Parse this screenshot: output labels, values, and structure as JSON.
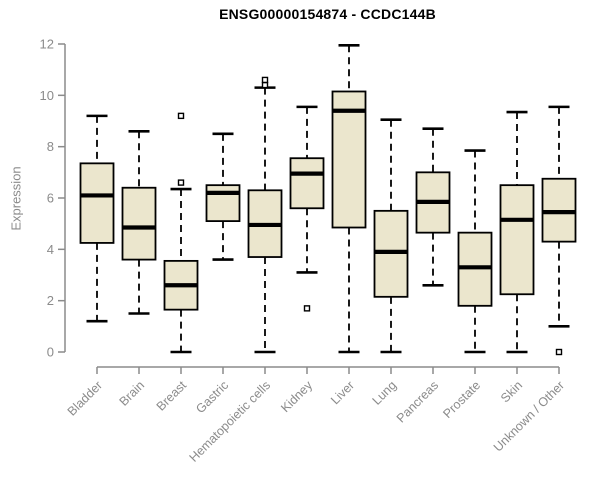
{
  "chart": {
    "title": "ENSG00000154874 - CCDC144B",
    "ylabel": "Expression"
  },
  "chart_data": {
    "type": "boxplot",
    "title": "ENSG00000154874 - CCDC144B",
    "xlabel": "",
    "ylabel": "Expression",
    "ylim": [
      0,
      12
    ],
    "yticks": [
      0,
      2,
      4,
      6,
      8,
      10,
      12
    ],
    "grid": false,
    "legend": "none",
    "categories": [
      "Bladder",
      "Brain",
      "Breast",
      "Gastric",
      "Hematopoietic cells",
      "Kidney",
      "Liver",
      "Lung",
      "Pancreas",
      "Prostate",
      "Skin",
      "Unknown / Other"
    ],
    "series": [
      {
        "name": "Bladder",
        "whisker_low": 1.2,
        "q1": 4.25,
        "median": 6.1,
        "q3": 7.35,
        "whisker_high": 9.2,
        "outliers": []
      },
      {
        "name": "Brain",
        "whisker_low": 1.5,
        "q1": 3.6,
        "median": 4.85,
        "q3": 6.4,
        "whisker_high": 8.6,
        "outliers": []
      },
      {
        "name": "Breast",
        "whisker_low": 0.0,
        "q1": 1.65,
        "median": 2.6,
        "q3": 3.55,
        "whisker_high": 6.35,
        "outliers": [
          6.6,
          9.2
        ]
      },
      {
        "name": "Gastric",
        "whisker_low": 3.6,
        "q1": 5.1,
        "median": 6.2,
        "q3": 6.5,
        "whisker_high": 8.5,
        "outliers": []
      },
      {
        "name": "Hematopoietic cells",
        "whisker_low": 0.0,
        "q1": 3.7,
        "median": 4.95,
        "q3": 6.3,
        "whisker_high": 10.3,
        "outliers": [
          10.4,
          10.6
        ]
      },
      {
        "name": "Kidney",
        "whisker_low": 3.1,
        "q1": 5.6,
        "median": 6.95,
        "q3": 7.55,
        "whisker_high": 9.55,
        "outliers": [
          1.7
        ]
      },
      {
        "name": "Liver",
        "whisker_low": 0.0,
        "q1": 4.85,
        "median": 9.4,
        "q3": 10.15,
        "whisker_high": 11.95,
        "outliers": []
      },
      {
        "name": "Lung",
        "whisker_low": 0.0,
        "q1": 2.15,
        "median": 3.9,
        "q3": 5.5,
        "whisker_high": 9.05,
        "outliers": []
      },
      {
        "name": "Pancreas",
        "whisker_low": 2.6,
        "q1": 4.65,
        "median": 5.85,
        "q3": 7.0,
        "whisker_high": 8.7,
        "outliers": []
      },
      {
        "name": "Prostate",
        "whisker_low": 0.0,
        "q1": 1.8,
        "median": 3.3,
        "q3": 4.65,
        "whisker_high": 7.85,
        "outliers": []
      },
      {
        "name": "Skin",
        "whisker_low": 0.0,
        "q1": 2.25,
        "median": 5.15,
        "q3": 6.5,
        "whisker_high": 9.35,
        "outliers": []
      },
      {
        "name": "Unknown / Other",
        "whisker_low": 1.0,
        "q1": 4.3,
        "median": 5.45,
        "q3": 6.75,
        "whisker_high": 9.55,
        "outliers": [
          0.0
        ]
      }
    ],
    "colors": {
      "box_fill": "#EBE6CD",
      "box_border": "#000000",
      "median": "#000000",
      "whisker": "#000000",
      "outlier_fill": "#ffffff",
      "axis": "#8b8b8b",
      "tick_label": "#8b8b8b",
      "title": "#000000",
      "background": "#ffffff"
    }
  }
}
